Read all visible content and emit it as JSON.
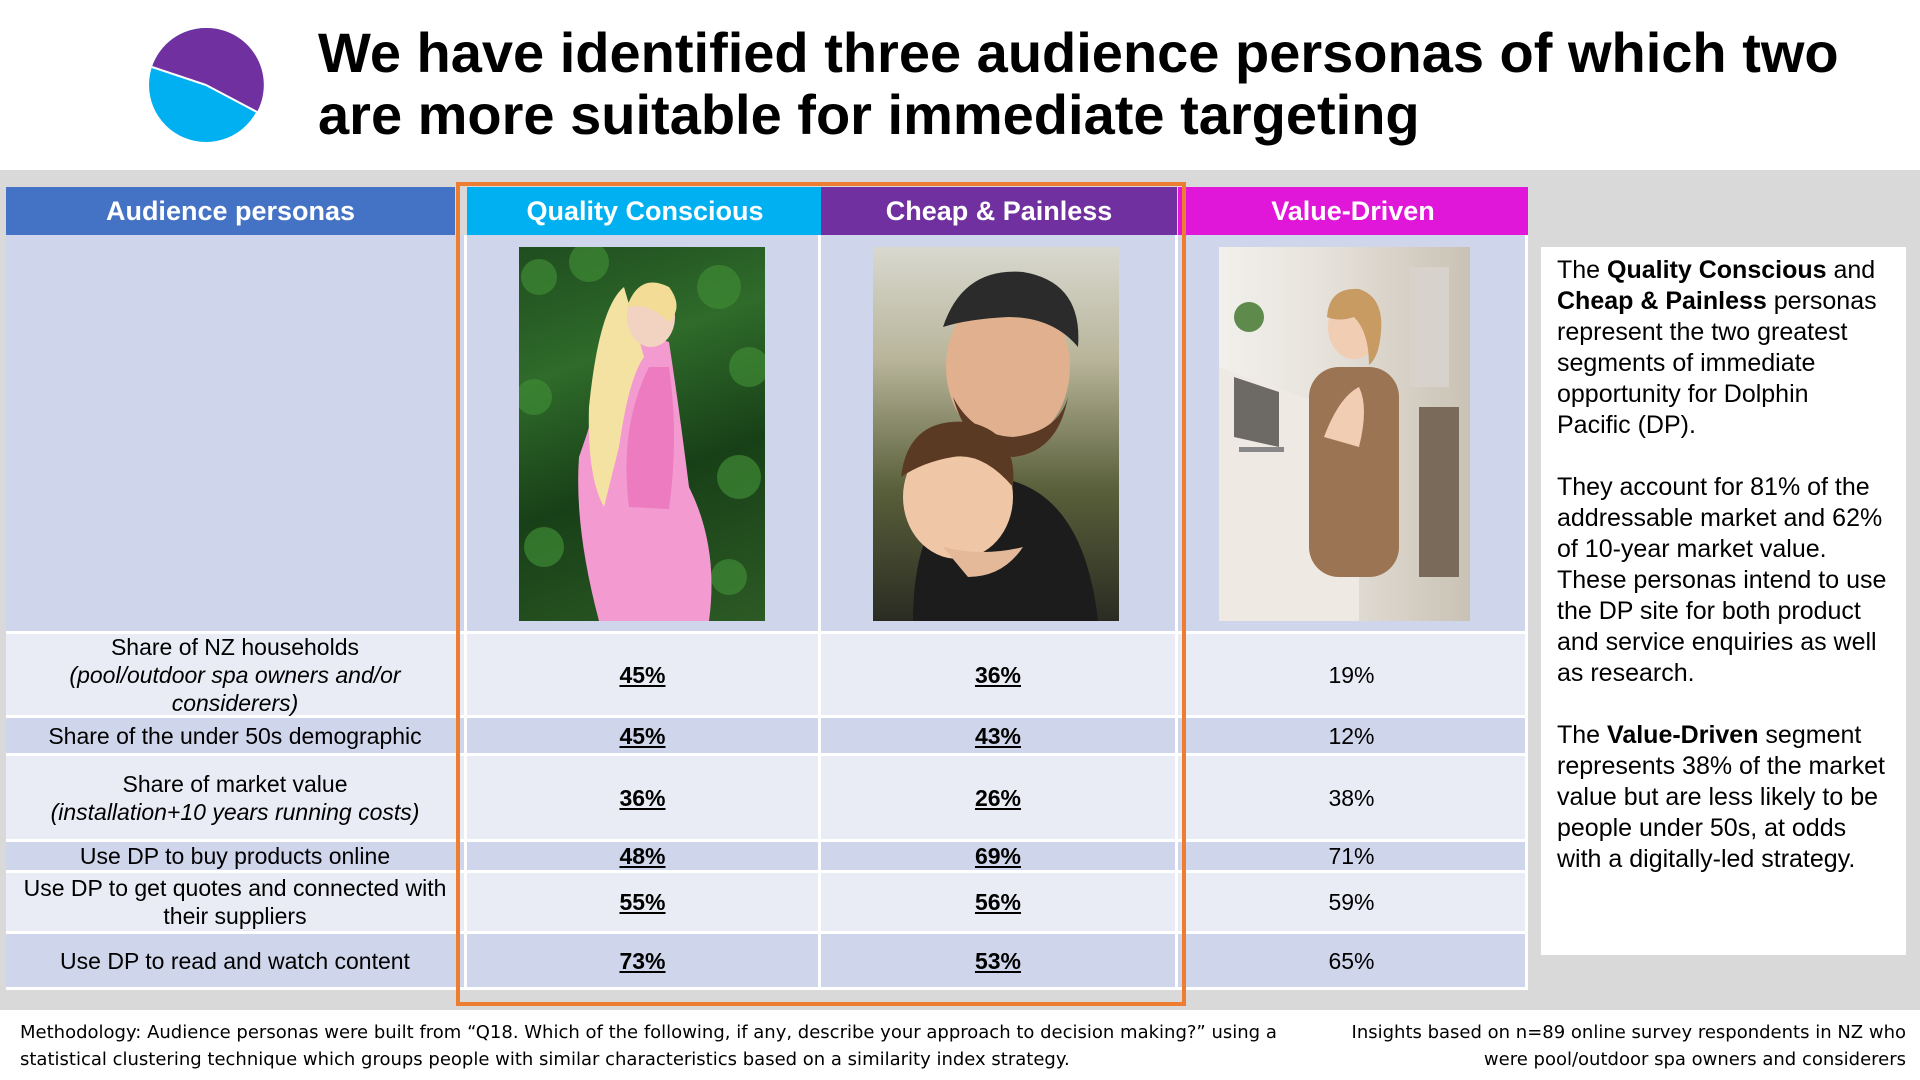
{
  "title": "We have identified three audience personas of which two are more suitable for immediate targeting",
  "colors": {
    "audience": "#4472c4",
    "quality": "#00b0f0",
    "cheap": "#7030a0",
    "value": "#e016d8",
    "highlight_box": "#ed7d31"
  },
  "icons": {
    "logo": "pie-chart-icon"
  },
  "table": {
    "headers": {
      "audience": "Audience personas",
      "quality": "Quality Conscious",
      "cheap": "Cheap & Painless",
      "value": "Value-Driven"
    },
    "rows": [
      {
        "label": "Share of NZ households",
        "sub": "(pool/outdoor spa owners and/or considerers)",
        "q": "45%",
        "c": "36%",
        "v": "19%"
      },
      {
        "label": "Share of the under 50s demographic",
        "sub": "",
        "q": "45%",
        "c": "43%",
        "v": "12%"
      },
      {
        "label": "Share of market value",
        "sub": "(installation+10 years running costs)",
        "q": "36%",
        "c": "26%",
        "v": "38%"
      },
      {
        "label": "Use DP to buy products online",
        "sub": "",
        "q": "48%",
        "c": "69%",
        "v": "71%"
      },
      {
        "label": "Use DP to get quotes and connected with their suppliers",
        "sub": "",
        "q": "55%",
        "c": "56%",
        "v": "59%"
      },
      {
        "label": "Use DP to read and watch content",
        "sub": "",
        "q": "73%",
        "c": "53%",
        "v": "65%"
      }
    ]
  },
  "note": {
    "p1_pre": "The ",
    "p1_bold1": "Quality Conscious",
    "p1_mid": " and ",
    "p1_bold2": "Cheap & Painless",
    "p1_post": " personas represent the two greatest segments of immediate opportunity for Dolphin Pacific (DP).",
    "p2": "They account for 81% of the addressable market and 62% of 10-year market value. These personas intend to use the DP site for both product and service enquiries as well as research.",
    "p3_pre": "The ",
    "p3_bold": "Value-Driven",
    "p3_post": " segment represents 38% of the market value but are less likely to be people under 50s, at odds with a digitally-led strategy."
  },
  "footer": {
    "methodology": "Methodology: Audience personas were built from “Q18. Which of the following, if any, describe your approach to decision making?” using a statistical clustering technique which groups people with similar characteristics based on a similarity index strategy.",
    "insights": "Insights based on n=89 online survey respondents in NZ who were pool/outdoor spa owners and considerers"
  }
}
